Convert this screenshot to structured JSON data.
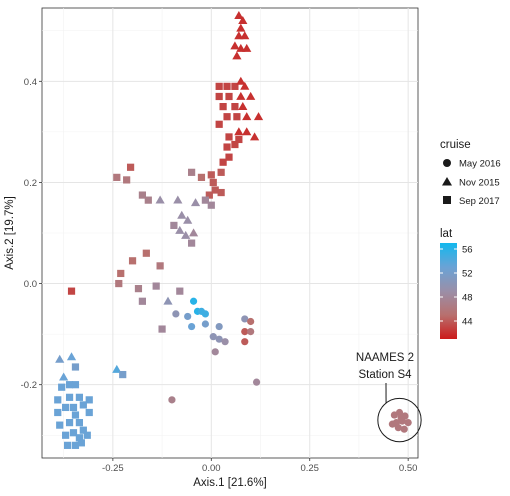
{
  "chart_data": {
    "type": "scatter",
    "xlabel": "Axis.1  [21.6%]",
    "ylabel": "Axis.2  [19.7%]",
    "xlim": [
      -0.43,
      0.525
    ],
    "ylim": [
      -0.345,
      0.545
    ],
    "xticks": [
      -0.25,
      0.0,
      0.25,
      0.5
    ],
    "xtick_labels": [
      "-0.25",
      "0.00",
      "0.25",
      "0.50"
    ],
    "yticks": [
      -0.2,
      0.0,
      0.2,
      0.4
    ],
    "yticks_labels": [
      "-0.2",
      "0.0",
      "0.2",
      "0.4"
    ],
    "grid": true,
    "legend_position": "right",
    "shape_legend": {
      "title": "cruise",
      "entries": [
        {
          "label": "May 2016",
          "shape": "circle"
        },
        {
          "label": "Nov 2015",
          "shape": "triangle"
        },
        {
          "label": "Sep 2017",
          "shape": "square"
        }
      ]
    },
    "color_legend": {
      "title": "lat",
      "min": 41,
      "max": 57,
      "colors": [
        "#cc1a1a",
        "#b8706e",
        "#9a8fa8",
        "#6aa3d6",
        "#12b8ee"
      ],
      "tick_values": [
        44,
        48,
        52,
        56
      ],
      "tick_labels": [
        "44",
        "48",
        "52",
        "56"
      ]
    },
    "annotation": {
      "lines": [
        "NAAMES 2",
        "Station S4"
      ],
      "circle_center": [
        0.478,
        -0.27
      ],
      "circle_radius": 0.055
    },
    "points": [
      {
        "x": 0.07,
        "y": 0.53,
        "shape": "triangle",
        "lat": 42
      },
      {
        "x": 0.08,
        "y": 0.52,
        "shape": "triangle",
        "lat": 42
      },
      {
        "x": 0.075,
        "y": 0.505,
        "shape": "triangle",
        "lat": 42
      },
      {
        "x": 0.07,
        "y": 0.49,
        "shape": "triangle",
        "lat": 42
      },
      {
        "x": 0.085,
        "y": 0.49,
        "shape": "triangle",
        "lat": 42
      },
      {
        "x": 0.06,
        "y": 0.47,
        "shape": "triangle",
        "lat": 42
      },
      {
        "x": 0.075,
        "y": 0.465,
        "shape": "triangle",
        "lat": 42
      },
      {
        "x": 0.09,
        "y": 0.465,
        "shape": "triangle",
        "lat": 42
      },
      {
        "x": 0.065,
        "y": 0.45,
        "shape": "triangle",
        "lat": 42
      },
      {
        "x": 0.02,
        "y": 0.39,
        "shape": "square",
        "lat": 43
      },
      {
        "x": 0.04,
        "y": 0.39,
        "shape": "square",
        "lat": 43
      },
      {
        "x": 0.06,
        "y": 0.39,
        "shape": "square",
        "lat": 43
      },
      {
        "x": 0.075,
        "y": 0.4,
        "shape": "triangle",
        "lat": 42
      },
      {
        "x": 0.085,
        "y": 0.39,
        "shape": "triangle",
        "lat": 42
      },
      {
        "x": 0.02,
        "y": 0.37,
        "shape": "square",
        "lat": 43
      },
      {
        "x": 0.045,
        "y": 0.37,
        "shape": "square",
        "lat": 43
      },
      {
        "x": 0.075,
        "y": 0.37,
        "shape": "triangle",
        "lat": 42
      },
      {
        "x": 0.1,
        "y": 0.37,
        "shape": "triangle",
        "lat": 42
      },
      {
        "x": 0.03,
        "y": 0.35,
        "shape": "square",
        "lat": 43
      },
      {
        "x": 0.06,
        "y": 0.35,
        "shape": "square",
        "lat": 43
      },
      {
        "x": 0.08,
        "y": 0.35,
        "shape": "triangle",
        "lat": 42
      },
      {
        "x": 0.04,
        "y": 0.33,
        "shape": "square",
        "lat": 43
      },
      {
        "x": 0.065,
        "y": 0.33,
        "shape": "square",
        "lat": 43
      },
      {
        "x": 0.09,
        "y": 0.33,
        "shape": "triangle",
        "lat": 42
      },
      {
        "x": 0.12,
        "y": 0.33,
        "shape": "triangle",
        "lat": 42
      },
      {
        "x": 0.02,
        "y": 0.315,
        "shape": "square",
        "lat": 43
      },
      {
        "x": 0.07,
        "y": 0.3,
        "shape": "triangle",
        "lat": 42
      },
      {
        "x": 0.09,
        "y": 0.3,
        "shape": "triangle",
        "lat": 42
      },
      {
        "x": 0.045,
        "y": 0.29,
        "shape": "square",
        "lat": 43
      },
      {
        "x": 0.07,
        "y": 0.285,
        "shape": "square",
        "lat": 43
      },
      {
        "x": 0.11,
        "y": 0.29,
        "shape": "triangle",
        "lat": 42
      },
      {
        "x": 0.04,
        "y": 0.27,
        "shape": "square",
        "lat": 43
      },
      {
        "x": 0.06,
        "y": 0.275,
        "shape": "square",
        "lat": 43
      },
      {
        "x": 0.045,
        "y": 0.25,
        "shape": "square",
        "lat": 43
      },
      {
        "x": 0.03,
        "y": 0.24,
        "shape": "square",
        "lat": 43
      },
      {
        "x": 0.025,
        "y": 0.22,
        "shape": "square",
        "lat": 44
      },
      {
        "x": 0.0,
        "y": 0.215,
        "shape": "square",
        "lat": 44
      },
      {
        "x": -0.025,
        "y": 0.21,
        "shape": "square",
        "lat": 45
      },
      {
        "x": 0.005,
        "y": 0.2,
        "shape": "square",
        "lat": 44
      },
      {
        "x": 0.01,
        "y": 0.185,
        "shape": "square",
        "lat": 44
      },
      {
        "x": 0.025,
        "y": 0.18,
        "shape": "square",
        "lat": 44
      },
      {
        "x": -0.005,
        "y": 0.175,
        "shape": "square",
        "lat": 44
      },
      {
        "x": -0.05,
        "y": 0.22,
        "shape": "square",
        "lat": 47
      },
      {
        "x": -0.205,
        "y": 0.23,
        "shape": "square",
        "lat": 44
      },
      {
        "x": -0.215,
        "y": 0.205,
        "shape": "square",
        "lat": 46
      },
      {
        "x": -0.24,
        "y": 0.21,
        "shape": "square",
        "lat": 46
      },
      {
        "x": -0.175,
        "y": 0.175,
        "shape": "square",
        "lat": 47
      },
      {
        "x": -0.16,
        "y": 0.165,
        "shape": "square",
        "lat": 47
      },
      {
        "x": -0.13,
        "y": 0.165,
        "shape": "triangle",
        "lat": 49
      },
      {
        "x": -0.085,
        "y": 0.165,
        "shape": "triangle",
        "lat": 49
      },
      {
        "x": -0.04,
        "y": 0.16,
        "shape": "triangle",
        "lat": 49
      },
      {
        "x": -0.015,
        "y": 0.165,
        "shape": "square",
        "lat": 48
      },
      {
        "x": 0.0,
        "y": 0.155,
        "shape": "square",
        "lat": 48
      },
      {
        "x": -0.075,
        "y": 0.135,
        "shape": "triangle",
        "lat": 49
      },
      {
        "x": -0.06,
        "y": 0.125,
        "shape": "triangle",
        "lat": 49
      },
      {
        "x": -0.045,
        "y": 0.1,
        "shape": "triangle",
        "lat": 48
      },
      {
        "x": -0.08,
        "y": 0.105,
        "shape": "triangle",
        "lat": 49
      },
      {
        "x": -0.095,
        "y": 0.115,
        "shape": "square",
        "lat": 48
      },
      {
        "x": -0.065,
        "y": 0.095,
        "shape": "triangle",
        "lat": 49
      },
      {
        "x": -0.05,
        "y": 0.08,
        "shape": "square",
        "lat": 48
      },
      {
        "x": -0.165,
        "y": 0.06,
        "shape": "square",
        "lat": 45
      },
      {
        "x": -0.2,
        "y": 0.045,
        "shape": "square",
        "lat": 45
      },
      {
        "x": -0.13,
        "y": 0.035,
        "shape": "square",
        "lat": 46
      },
      {
        "x": -0.23,
        "y": 0.02,
        "shape": "square",
        "lat": 45
      },
      {
        "x": -0.235,
        "y": 0.0,
        "shape": "square",
        "lat": 46
      },
      {
        "x": -0.185,
        "y": -0.01,
        "shape": "square",
        "lat": 47
      },
      {
        "x": -0.14,
        "y": -0.005,
        "shape": "square",
        "lat": 48
      },
      {
        "x": -0.175,
        "y": -0.035,
        "shape": "square",
        "lat": 48
      },
      {
        "x": -0.08,
        "y": -0.015,
        "shape": "square",
        "lat": 48
      },
      {
        "x": -0.355,
        "y": -0.015,
        "shape": "square",
        "lat": 43
      },
      {
        "x": -0.11,
        "y": -0.035,
        "shape": "triangle",
        "lat": 50
      },
      {
        "x": -0.045,
        "y": -0.035,
        "shape": "circle",
        "lat": 56
      },
      {
        "x": -0.035,
        "y": -0.055,
        "shape": "circle",
        "lat": 56
      },
      {
        "x": -0.025,
        "y": -0.055,
        "shape": "circle",
        "lat": 55
      },
      {
        "x": -0.015,
        "y": -0.06,
        "shape": "circle",
        "lat": 55
      },
      {
        "x": -0.06,
        "y": -0.065,
        "shape": "circle",
        "lat": 52
      },
      {
        "x": -0.09,
        "y": -0.06,
        "shape": "circle",
        "lat": 50
      },
      {
        "x": -0.125,
        "y": -0.09,
        "shape": "square",
        "lat": 48
      },
      {
        "x": -0.05,
        "y": -0.085,
        "shape": "circle",
        "lat": 53
      },
      {
        "x": -0.015,
        "y": -0.08,
        "shape": "circle",
        "lat": 52
      },
      {
        "x": 0.02,
        "y": -0.085,
        "shape": "circle",
        "lat": 51
      },
      {
        "x": 0.085,
        "y": -0.07,
        "shape": "circle",
        "lat": 50
      },
      {
        "x": 0.1,
        "y": -0.075,
        "shape": "circle",
        "lat": 45
      },
      {
        "x": 0.085,
        "y": -0.095,
        "shape": "circle",
        "lat": 44
      },
      {
        "x": 0.1,
        "y": -0.095,
        "shape": "circle",
        "lat": 46
      },
      {
        "x": 0.085,
        "y": -0.115,
        "shape": "circle",
        "lat": 44
      },
      {
        "x": 0.005,
        "y": -0.105,
        "shape": "circle",
        "lat": 50
      },
      {
        "x": 0.02,
        "y": -0.11,
        "shape": "circle",
        "lat": 50
      },
      {
        "x": 0.035,
        "y": -0.115,
        "shape": "circle",
        "lat": 49
      },
      {
        "x": 0.01,
        "y": -0.135,
        "shape": "circle",
        "lat": 48
      },
      {
        "x": 0.115,
        "y": -0.195,
        "shape": "circle",
        "lat": 48
      },
      {
        "x": -0.1,
        "y": -0.23,
        "shape": "circle",
        "lat": 47
      },
      {
        "x": -0.385,
        "y": -0.15,
        "shape": "triangle",
        "lat": 52
      },
      {
        "x": -0.355,
        "y": -0.145,
        "shape": "triangle",
        "lat": 53
      },
      {
        "x": -0.345,
        "y": -0.165,
        "shape": "square",
        "lat": 52
      },
      {
        "x": -0.375,
        "y": -0.185,
        "shape": "triangle",
        "lat": 53
      },
      {
        "x": -0.24,
        "y": -0.17,
        "shape": "triangle",
        "lat": 54
      },
      {
        "x": -0.225,
        "y": -0.18,
        "shape": "square",
        "lat": 52
      },
      {
        "x": -0.38,
        "y": -0.205,
        "shape": "square",
        "lat": 53
      },
      {
        "x": -0.36,
        "y": -0.2,
        "shape": "square",
        "lat": 53
      },
      {
        "x": -0.345,
        "y": -0.2,
        "shape": "square",
        "lat": 53
      },
      {
        "x": -0.39,
        "y": -0.23,
        "shape": "square",
        "lat": 53
      },
      {
        "x": -0.36,
        "y": -0.225,
        "shape": "square",
        "lat": 53
      },
      {
        "x": -0.335,
        "y": -0.225,
        "shape": "square",
        "lat": 53
      },
      {
        "x": -0.31,
        "y": -0.23,
        "shape": "square",
        "lat": 53
      },
      {
        "x": -0.37,
        "y": -0.245,
        "shape": "square",
        "lat": 53
      },
      {
        "x": -0.35,
        "y": -0.245,
        "shape": "square",
        "lat": 53
      },
      {
        "x": -0.325,
        "y": -0.24,
        "shape": "square",
        "lat": 53
      },
      {
        "x": -0.39,
        "y": -0.255,
        "shape": "square",
        "lat": 53
      },
      {
        "x": -0.345,
        "y": -0.26,
        "shape": "square",
        "lat": 53
      },
      {
        "x": -0.31,
        "y": -0.255,
        "shape": "square",
        "lat": 53
      },
      {
        "x": -0.36,
        "y": -0.275,
        "shape": "square",
        "lat": 53
      },
      {
        "x": -0.335,
        "y": -0.275,
        "shape": "square",
        "lat": 53
      },
      {
        "x": -0.385,
        "y": -0.28,
        "shape": "square",
        "lat": 53
      },
      {
        "x": -0.325,
        "y": -0.29,
        "shape": "square",
        "lat": 53
      },
      {
        "x": -0.35,
        "y": -0.295,
        "shape": "square",
        "lat": 53
      },
      {
        "x": -0.37,
        "y": -0.3,
        "shape": "square",
        "lat": 53
      },
      {
        "x": -0.335,
        "y": -0.305,
        "shape": "square",
        "lat": 53
      },
      {
        "x": -0.315,
        "y": -0.3,
        "shape": "square",
        "lat": 53
      },
      {
        "x": -0.345,
        "y": -0.32,
        "shape": "square",
        "lat": 53
      },
      {
        "x": -0.33,
        "y": -0.315,
        "shape": "square",
        "lat": 53
      },
      {
        "x": -0.365,
        "y": -0.32,
        "shape": "square",
        "lat": 53
      },
      {
        "x": 0.465,
        "y": -0.26,
        "shape": "circle",
        "lat": 46
      },
      {
        "x": 0.478,
        "y": -0.255,
        "shape": "circle",
        "lat": 46
      },
      {
        "x": 0.492,
        "y": -0.262,
        "shape": "circle",
        "lat": 46
      },
      {
        "x": 0.47,
        "y": -0.275,
        "shape": "circle",
        "lat": 46
      },
      {
        "x": 0.485,
        "y": -0.272,
        "shape": "circle",
        "lat": 46
      },
      {
        "x": 0.5,
        "y": -0.275,
        "shape": "circle",
        "lat": 46
      },
      {
        "x": 0.475,
        "y": -0.285,
        "shape": "circle",
        "lat": 46
      },
      {
        "x": 0.49,
        "y": -0.288,
        "shape": "circle",
        "lat": 46
      },
      {
        "x": 0.46,
        "y": -0.278,
        "shape": "circle",
        "lat": 46
      },
      {
        "x": 0.482,
        "y": -0.265,
        "shape": "circle",
        "lat": 46
      }
    ]
  }
}
